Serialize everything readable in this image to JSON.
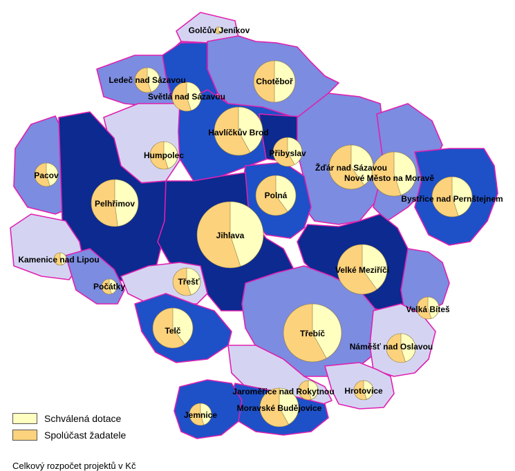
{
  "colors": {
    "approved_subsidy": "#ffffc0",
    "applicant_share": "#fcd27c",
    "border": "#e020b0",
    "region_light": "#d4d4f2",
    "region_mid": "#7c8ce0",
    "region_blue": "#1e50c8",
    "region_dark": "#0c2a90"
  },
  "legend": {
    "approved_label": "Schválená dotace",
    "share_label": "Spolúčast žadatele",
    "budget_caption": "Celkový rozpočet projektů v Kč"
  },
  "towns": [
    {
      "id": "golcuv-jenikov",
      "name": "Golčův Jeníkov",
      "approved_share": 0.5
    },
    {
      "id": "ledec-nad-sazavou",
      "name": "Ledeč nad Sázavou",
      "approved_share": 0.45
    },
    {
      "id": "svetla-nad-sazavou",
      "name": "Světlá nad Sázavou",
      "approved_share": 0.45
    },
    {
      "id": "chotebor",
      "name": "Chotěboř",
      "approved_share": 0.5
    },
    {
      "id": "havlickuv-brod",
      "name": "Havlíčkův Brod",
      "approved_share": 0.42
    },
    {
      "id": "prybyslav",
      "name": "Přibyslav",
      "approved_share": 0.42
    },
    {
      "id": "humpolec",
      "name": "Humpolec",
      "approved_share": 0.45
    },
    {
      "id": "pacov",
      "name": "Pacov",
      "approved_share": 0.45
    },
    {
      "id": "zdar-nad-sazavou",
      "name": "Žďár nad Sázavou",
      "approved_share": 0.4
    },
    {
      "id": "nove-mesto-na-morave",
      "name": "Nové Město na Moravě",
      "approved_share": 0.45
    },
    {
      "id": "bystrice-nad-pernstejnem",
      "name": "Bystřice nad Pernštejnem",
      "approved_share": 0.45
    },
    {
      "id": "pelhrimov",
      "name": "Pelhřimov",
      "approved_share": 0.48
    },
    {
      "id": "polna",
      "name": "Polná",
      "approved_share": 0.4
    },
    {
      "id": "jihlava",
      "name": "Jihlava",
      "approved_share": 0.45
    },
    {
      "id": "kamenice-nad-lipou",
      "name": "Kamenice nad Lipou",
      "approved_share": 0.45
    },
    {
      "id": "velke-mezirici",
      "name": "Velké Meziříčí",
      "approved_share": 0.4
    },
    {
      "id": "trest",
      "name": "Třešť",
      "approved_share": 0.45
    },
    {
      "id": "pocatky",
      "name": "Počátky",
      "approved_share": 0.45
    },
    {
      "id": "velka-bites",
      "name": "Velká Bíteš",
      "approved_share": 0.45
    },
    {
      "id": "telc",
      "name": "Telč",
      "approved_share": 0.4
    },
    {
      "id": "trebic",
      "name": "Třebíč",
      "approved_share": 0.42
    },
    {
      "id": "namest-nad-oslavou",
      "name": "Náměšť nad Oslavou",
      "approved_share": 0.45
    },
    {
      "id": "jaromerice-nad-rokytnou",
      "name": "Jaroměřice nad Rokytnou",
      "approved_share": 0.45
    },
    {
      "id": "hrotovice",
      "name": "Hrotovice",
      "approved_share": 0.45
    },
    {
      "id": "moravske-budejovice",
      "name": "Moravské Budějovice",
      "approved_share": 0.42
    },
    {
      "id": "jemnice",
      "name": "Jemnice",
      "approved_share": 0.45
    }
  ]
}
